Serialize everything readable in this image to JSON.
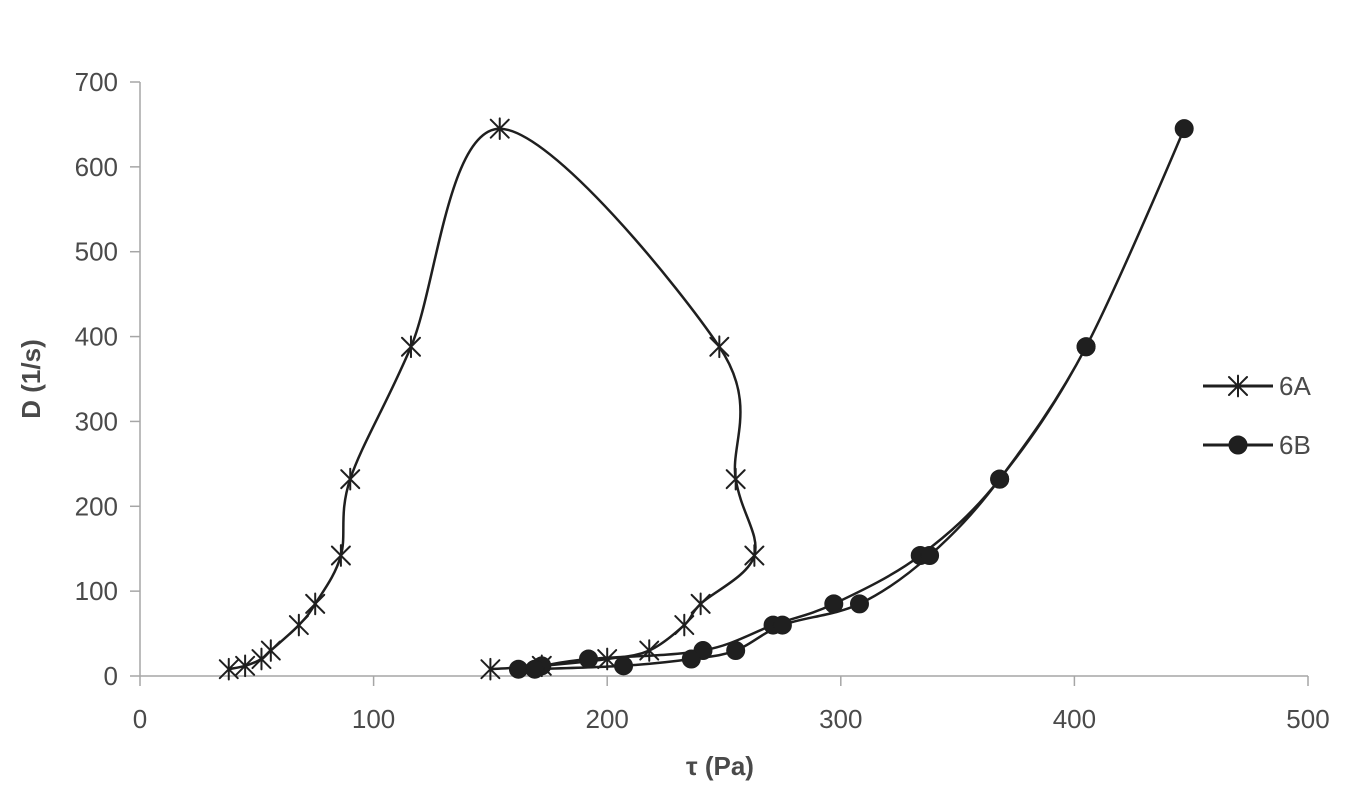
{
  "chart_data": {
    "type": "scatter",
    "title": "",
    "xlabel": "τ (Pa)",
    "ylabel": "D (1/s)",
    "xlim": [
      0,
      500
    ],
    "ylim": [
      0,
      700
    ],
    "xticks": [
      "0",
      "100",
      "200",
      "300",
      "400",
      "500"
    ],
    "yticks": [
      "0",
      "100",
      "200",
      "300",
      "400",
      "500",
      "600",
      "700"
    ],
    "grid": false,
    "legend_position": "right",
    "line_color": "#1f1f1f",
    "series": [
      {
        "name": "6A",
        "marker": "star",
        "points": [
          [
            38,
            8
          ],
          [
            45,
            12
          ],
          [
            52,
            20
          ],
          [
            56,
            30
          ],
          [
            68,
            60
          ],
          [
            75,
            85
          ],
          [
            86,
            142
          ],
          [
            90,
            232
          ],
          [
            116,
            388
          ],
          [
            154,
            645
          ],
          [
            248,
            388
          ],
          [
            255,
            232
          ],
          [
            263,
            142
          ],
          [
            240,
            85
          ],
          [
            233,
            60
          ],
          [
            218,
            30
          ],
          [
            200,
            20
          ],
          [
            172,
            12
          ],
          [
            150,
            8
          ]
        ]
      },
      {
        "name": "6B",
        "marker": "circle",
        "points": [
          [
            162,
            8
          ],
          [
            172,
            12
          ],
          [
            192,
            20
          ],
          [
            241,
            30
          ],
          [
            271,
            60
          ],
          [
            297,
            85
          ],
          [
            334,
            142
          ],
          [
            368,
            232
          ],
          [
            405,
            388
          ],
          [
            447,
            645
          ],
          [
            405,
            388
          ],
          [
            368,
            232
          ],
          [
            338,
            142
          ],
          [
            308,
            85
          ],
          [
            275,
            60
          ],
          [
            255,
            30
          ],
          [
            236,
            20
          ],
          [
            207,
            12
          ],
          [
            169,
            8
          ]
        ]
      }
    ]
  }
}
